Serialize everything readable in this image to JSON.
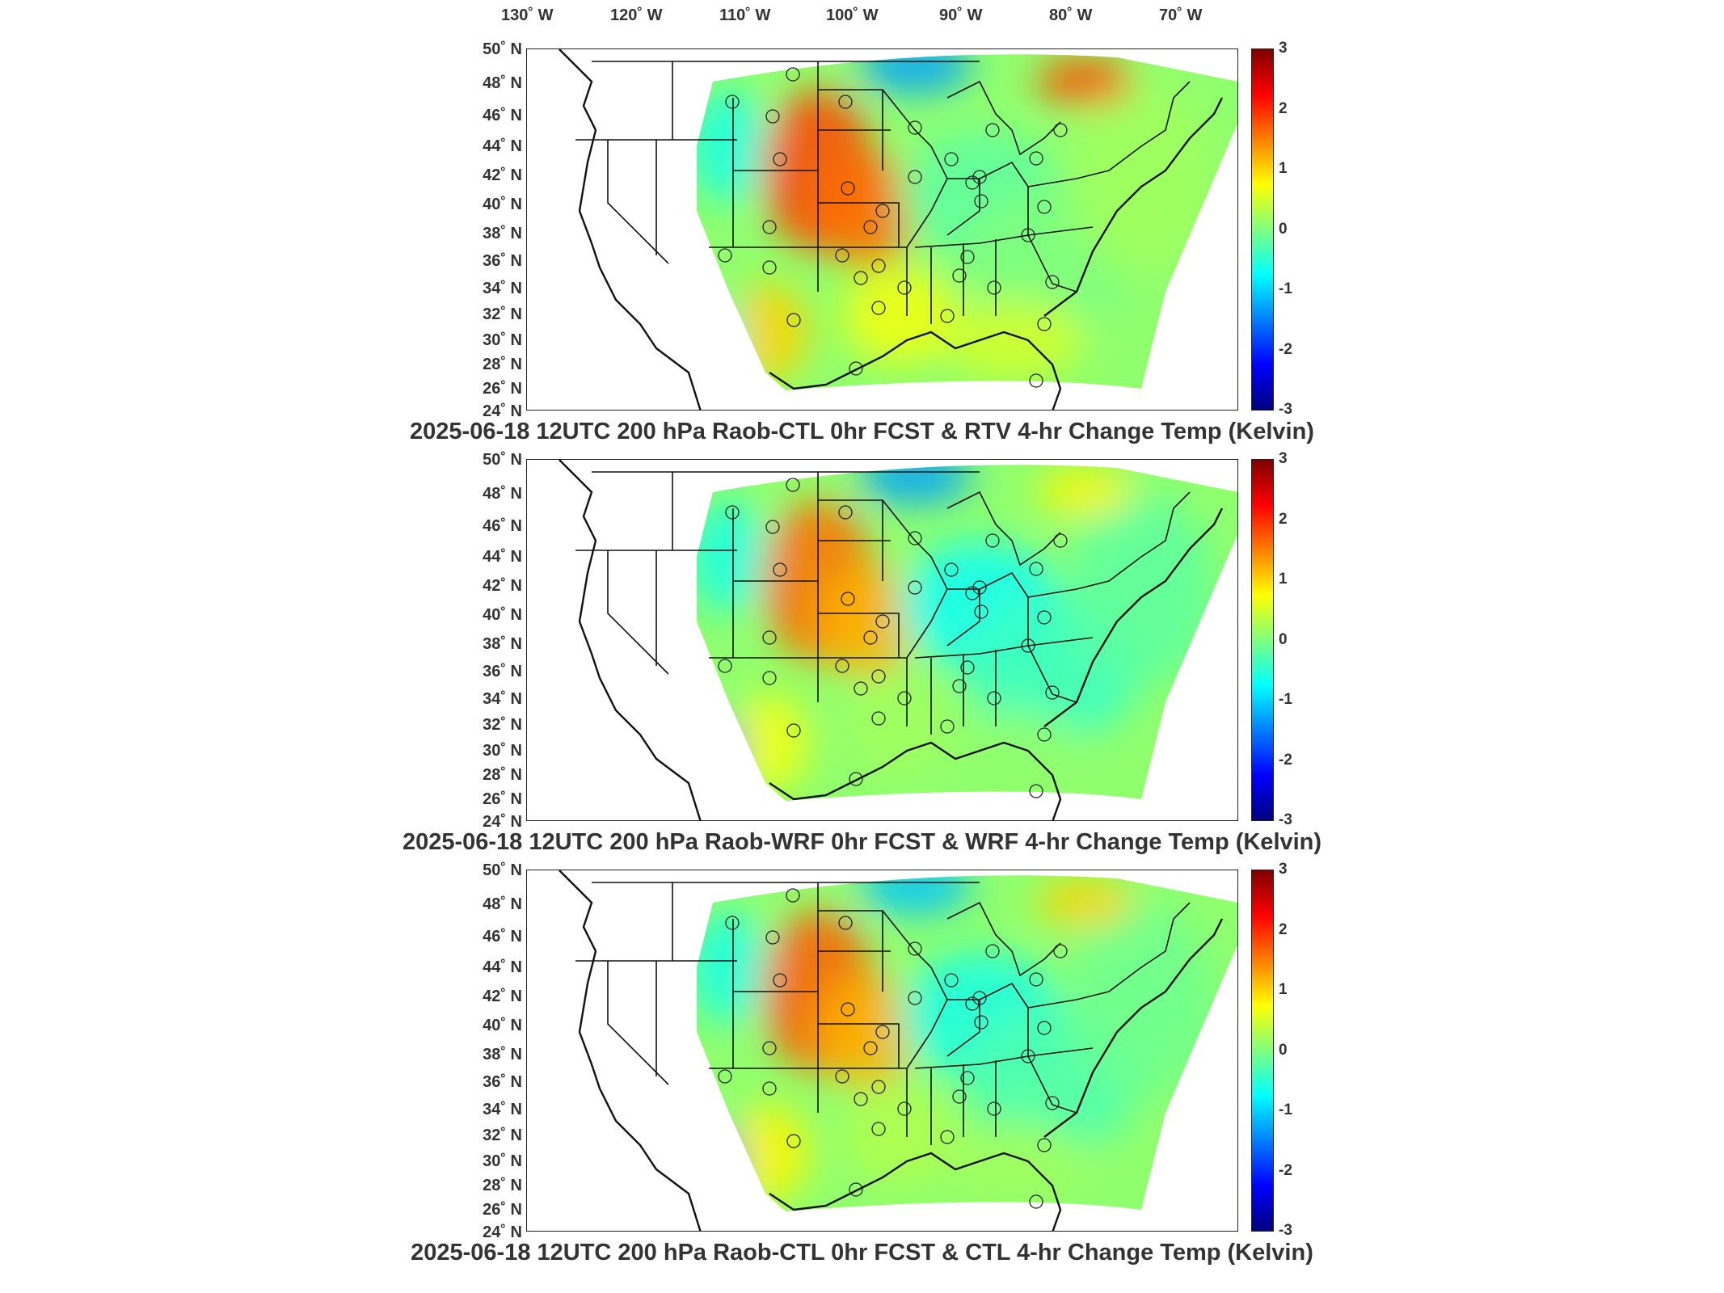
{
  "lon_labels": [
    "130˚ W",
    "120˚ W",
    "110˚ W",
    "100˚ W",
    "90˚ W",
    "80˚ W",
    "70˚ W"
  ],
  "lat_labels": [
    "50˚ N",
    "48˚ N",
    "46˚ N",
    "44˚ N",
    "42˚ N",
    "40˚ N",
    "38˚ N",
    "36˚ N",
    "34˚ N",
    "32˚ N",
    "30˚ N",
    "28˚ N",
    "26˚ N",
    "24˚ N"
  ],
  "colorbar": {
    "ticks": [
      "3",
      "2",
      "1",
      "0",
      "-1",
      "-2",
      "-3"
    ],
    "range": [
      -3,
      3
    ],
    "colormap": "jet",
    "colors": [
      "#00007f",
      "#0000ff",
      "#007fff",
      "#00ffff",
      "#7fff7f",
      "#ffff00",
      "#ff7f00",
      "#ff0000",
      "#7f0000"
    ]
  },
  "panels": [
    {
      "title": "2025-06-18 12UTC 200 hPa Raob-CTL 0hr FCST & RTV 4-hr Change Temp (Kelvin)"
    },
    {
      "title": "2025-06-18 12UTC 200 hPa Raob-WRF 0hr FCST & WRF 4-hr Change Temp (Kelvin)"
    },
    {
      "title": "2025-06-18 12UTC 200 hPa Raob-CTL 0hr FCST & CTL 4-hr Change Temp (Kelvin)"
    }
  ]
}
